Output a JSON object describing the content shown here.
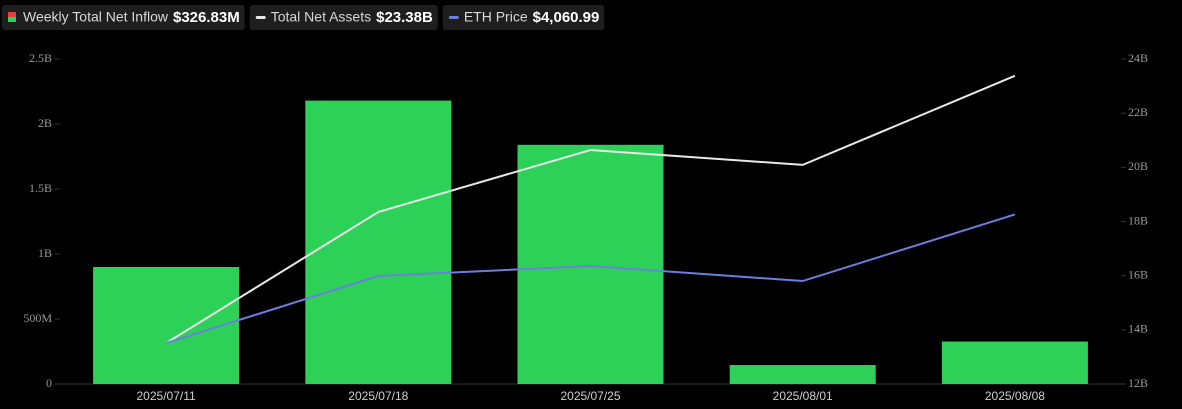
{
  "chart_data": {
    "type": "bar-line",
    "categories": [
      "2025/07/11",
      "2025/07/18",
      "2025/07/25",
      "2025/08/01",
      "2025/08/08"
    ],
    "series": [
      {
        "name": "Weekly Total Net Inflow",
        "color": "#2ed158",
        "type": "bar",
        "axis": "y",
        "values": [
          900000000,
          2180000000,
          1840000000,
          146000000,
          326830000
        ],
        "value_label": "$326.83M"
      },
      {
        "name": "Total Net Assets",
        "color": "#e8e8e8",
        "type": "line",
        "axis": "y2",
        "values": [
          13510000000,
          18350000000,
          20640000000,
          20090000000,
          23380000000
        ],
        "value_label": "$23.38B"
      },
      {
        "name": "ETH Price",
        "color": "#6b7fe0",
        "type": "line",
        "axis": "y3",
        "values": [
          2953,
          3530,
          3617,
          3487,
          4060.99
        ],
        "value_label": "$4,060.99"
      }
    ],
    "ylim": [
      0,
      2500000000
    ],
    "yticks": [
      0,
      {
        "value": 500000000,
        "label": "500M"
      },
      {
        "value": 1000000000,
        "label": "1B"
      },
      {
        "value": 1500000000,
        "label": "1.5B"
      },
      {
        "value": 2000000000,
        "label": "2B"
      },
      {
        "value": 2500000000,
        "label": "2.5B"
      }
    ],
    "y2lim": [
      12000000000,
      24000000000
    ],
    "y2ticks": [
      {
        "value": 12000000000,
        "label": "12B"
      },
      {
        "value": 14000000000,
        "label": "14B"
      },
      {
        "value": 16000000000,
        "label": "16B"
      },
      {
        "value": 18000000000,
        "label": "18B"
      },
      {
        "value": 20000000000,
        "label": "20B"
      },
      {
        "value": 22000000000,
        "label": "22B"
      },
      {
        "value": 24000000000,
        "label": "24B"
      }
    ],
    "y3lim": [
      2600,
      5400
    ]
  }
}
